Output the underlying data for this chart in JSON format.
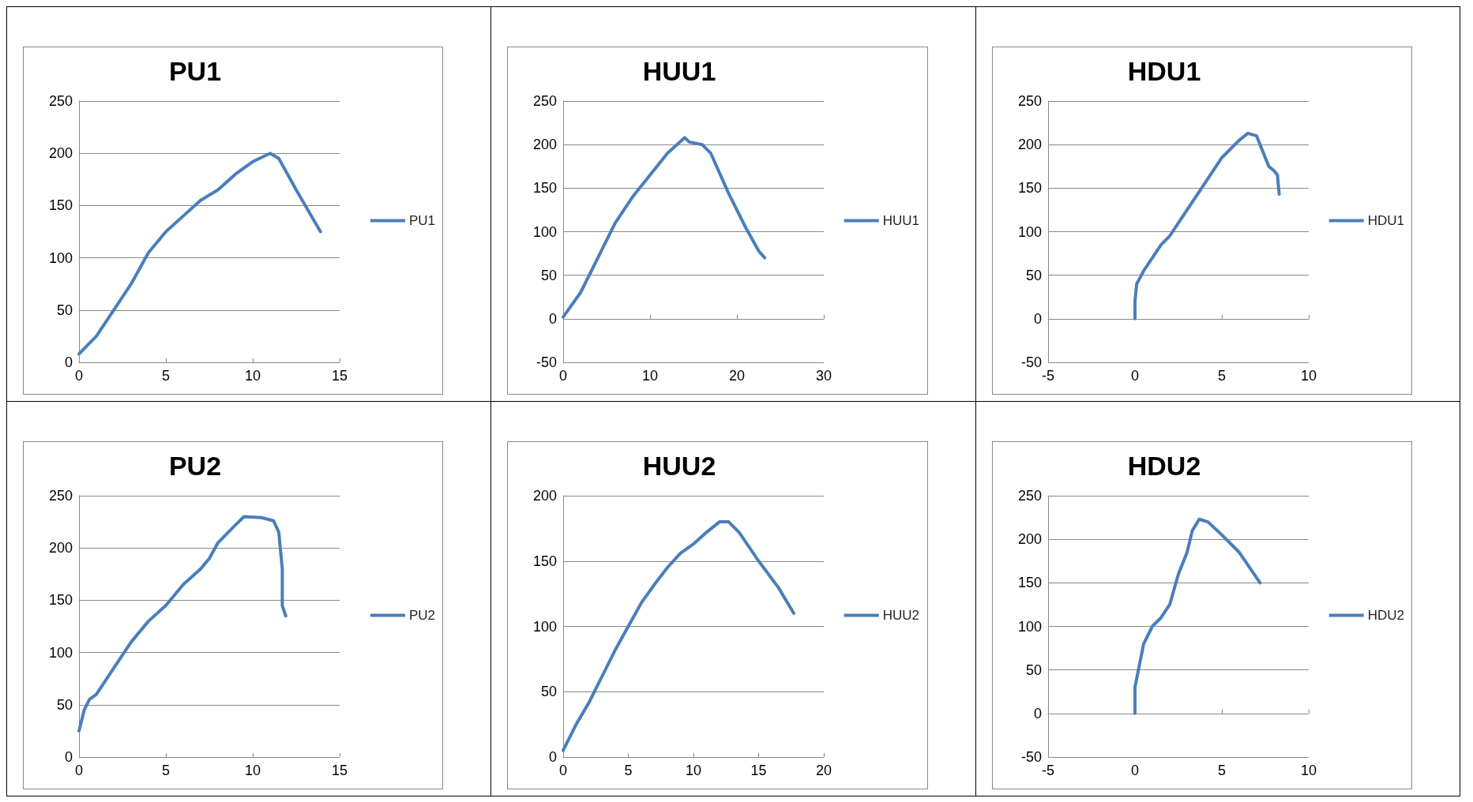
{
  "chart_data": [
    {
      "type": "line",
      "title": "PU1",
      "xlim": [
        0,
        15
      ],
      "xticks": [
        0,
        5,
        10,
        15
      ],
      "ylim": [
        0,
        250
      ],
      "yticks": [
        0,
        50,
        100,
        150,
        200,
        250
      ],
      "grid": "y",
      "legend": "right",
      "marker": "none",
      "line_style": "solid",
      "series": [
        {
          "name": "PU1",
          "color": "#4a7ebb",
          "x": [
            0,
            1,
            2,
            3,
            4,
            5,
            6,
            7,
            8,
            9,
            10,
            11,
            11.5,
            12.5,
            13.9
          ],
          "values": [
            8,
            25,
            50,
            75,
            105,
            125,
            140,
            155,
            165,
            180,
            192,
            200,
            195,
            165,
            125
          ]
        }
      ]
    },
    {
      "type": "line",
      "title": "HUU1",
      "xlim": [
        0,
        30
      ],
      "xticks": [
        0,
        10,
        20,
        30
      ],
      "ylim": [
        -50,
        250
      ],
      "yticks": [
        -50,
        0,
        50,
        100,
        150,
        200,
        250
      ],
      "grid": "y",
      "legend": "right",
      "marker": "none",
      "line_style": "solid",
      "series": [
        {
          "name": "HUU1",
          "color": "#4a7ebb",
          "x": [
            0,
            2,
            4,
            6,
            8,
            10,
            12,
            14,
            14.5,
            16,
            17,
            19,
            21,
            22.5,
            23.2
          ],
          "values": [
            2,
            30,
            70,
            110,
            140,
            165,
            190,
            208,
            203,
            200,
            190,
            145,
            105,
            78,
            70
          ]
        }
      ]
    },
    {
      "type": "line",
      "title": "HDU1",
      "xlim": [
        -5,
        10
      ],
      "xticks": [
        -5,
        0,
        5,
        10
      ],
      "ylim": [
        -50,
        250
      ],
      "yticks": [
        -50,
        0,
        50,
        100,
        150,
        200,
        250
      ],
      "grid": "y",
      "legend": "right",
      "marker": "none",
      "line_style": "solid",
      "series": [
        {
          "name": "HDU1",
          "color": "#4a7ebb",
          "x": [
            0,
            0,
            0.1,
            0.5,
            1,
            1.5,
            2,
            2.5,
            3,
            4,
            5,
            6,
            6.5,
            7,
            7.3,
            7.7,
            8,
            8.2,
            8.3
          ],
          "values": [
            0,
            20,
            40,
            55,
            70,
            85,
            95,
            110,
            125,
            155,
            185,
            205,
            213,
            210,
            195,
            175,
            170,
            165,
            143
          ]
        }
      ]
    },
    {
      "type": "line",
      "title": "PU2",
      "xlim": [
        0,
        15
      ],
      "xticks": [
        0,
        5,
        10,
        15
      ],
      "ylim": [
        0,
        250
      ],
      "yticks": [
        0,
        50,
        100,
        150,
        200,
        250
      ],
      "grid": "y",
      "legend": "right",
      "marker": "none",
      "line_style": "solid",
      "series": [
        {
          "name": "PU2",
          "color": "#4a7ebb",
          "x": [
            0,
            0.3,
            0.6,
            1,
            2,
            3,
            4,
            5,
            6,
            7,
            7.5,
            8,
            9,
            9.5,
            10.5,
            11.2,
            11.5,
            11.7,
            11.7,
            11.9
          ],
          "values": [
            25,
            45,
            55,
            60,
            85,
            110,
            130,
            145,
            165,
            180,
            190,
            205,
            222,
            230,
            229,
            226,
            215,
            180,
            145,
            135
          ]
        }
      ]
    },
    {
      "type": "line",
      "title": "HUU2",
      "xlim": [
        0,
        20
      ],
      "xticks": [
        0,
        5,
        10,
        15,
        20
      ],
      "ylim": [
        0,
        200
      ],
      "yticks": [
        0,
        50,
        100,
        150,
        200
      ],
      "grid": "y",
      "legend": "right",
      "marker": "none",
      "line_style": "solid",
      "series": [
        {
          "name": "HUU2",
          "color": "#4a7ebb",
          "x": [
            0,
            1,
            2,
            3,
            4,
            5,
            6,
            7,
            8,
            9,
            10,
            11,
            12,
            12.7,
            13.5,
            15,
            16.5,
            17.7
          ],
          "values": [
            5,
            25,
            42,
            62,
            82,
            100,
            118,
            132,
            145,
            156,
            163,
            172,
            180,
            180,
            172,
            150,
            130,
            110
          ]
        }
      ]
    },
    {
      "type": "line",
      "title": "HDU2",
      "xlim": [
        -5,
        10
      ],
      "xticks": [
        -5,
        0,
        5,
        10
      ],
      "ylim": [
        -50,
        250
      ],
      "yticks": [
        -50,
        0,
        50,
        100,
        150,
        200,
        250
      ],
      "grid": "y",
      "legend": "right",
      "marker": "none",
      "line_style": "solid",
      "series": [
        {
          "name": "HDU2",
          "color": "#4a7ebb",
          "x": [
            0,
            0,
            0.2,
            0.5,
            1,
            1.5,
            2,
            2.5,
            3,
            3.3,
            3.7,
            4.2,
            5,
            6,
            7.2
          ],
          "values": [
            0,
            30,
            50,
            80,
            100,
            110,
            125,
            160,
            185,
            210,
            223,
            220,
            205,
            185,
            150
          ]
        }
      ]
    }
  ]
}
